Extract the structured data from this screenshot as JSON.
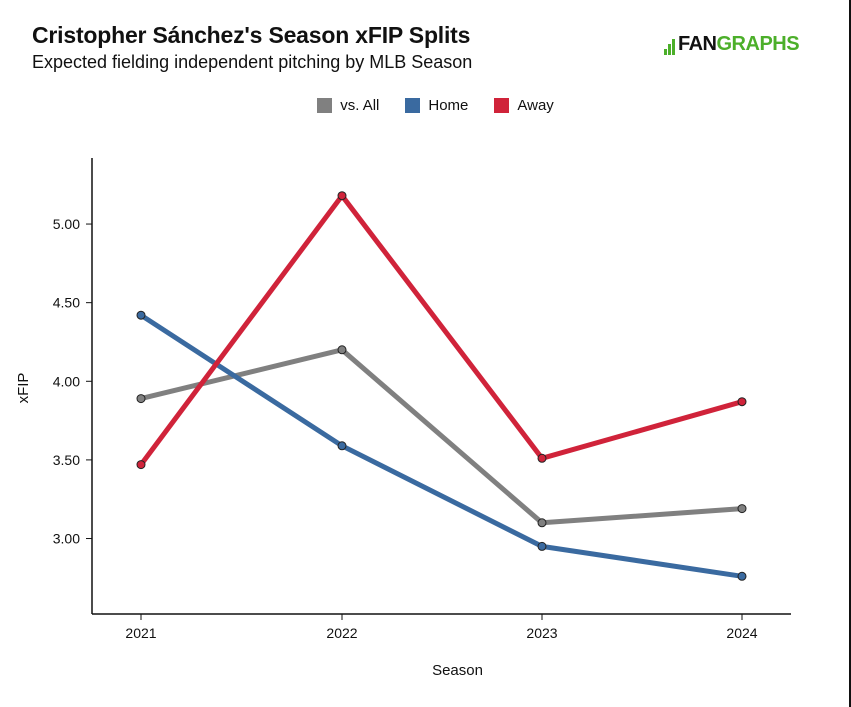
{
  "header": {
    "title": "Cristopher Sánchez's Season xFIP Splits",
    "subtitle": "Expected fielding independent pitching by MLB Season",
    "logo_fan": "FAN",
    "logo_graphs": "GRAPHS"
  },
  "chart_data": {
    "type": "line",
    "title": "Cristopher Sánchez's Season xFIP Splits",
    "subtitle": "Expected fielding independent pitching by MLB Season",
    "xlabel": "Season",
    "ylabel": "xFIP",
    "categories": [
      "2021",
      "2022",
      "2023",
      "2024"
    ],
    "ylim": [
      2.52,
      5.42
    ],
    "yticks": [
      3.0,
      3.5,
      4.0,
      4.5,
      5.0
    ],
    "ytick_labels": [
      "3.00",
      "3.50",
      "4.00",
      "4.50",
      "5.00"
    ],
    "grid": false,
    "legend_position": "top-center",
    "series": [
      {
        "name": "vs. All",
        "color": "#808080",
        "values": [
          3.89,
          4.2,
          3.1,
          3.19
        ]
      },
      {
        "name": "Home",
        "color": "#3a6aa0",
        "values": [
          4.42,
          3.59,
          2.95,
          2.76
        ]
      },
      {
        "name": "Away",
        "color": "#d0233a",
        "values": [
          3.47,
          5.18,
          3.51,
          3.87
        ]
      }
    ]
  }
}
